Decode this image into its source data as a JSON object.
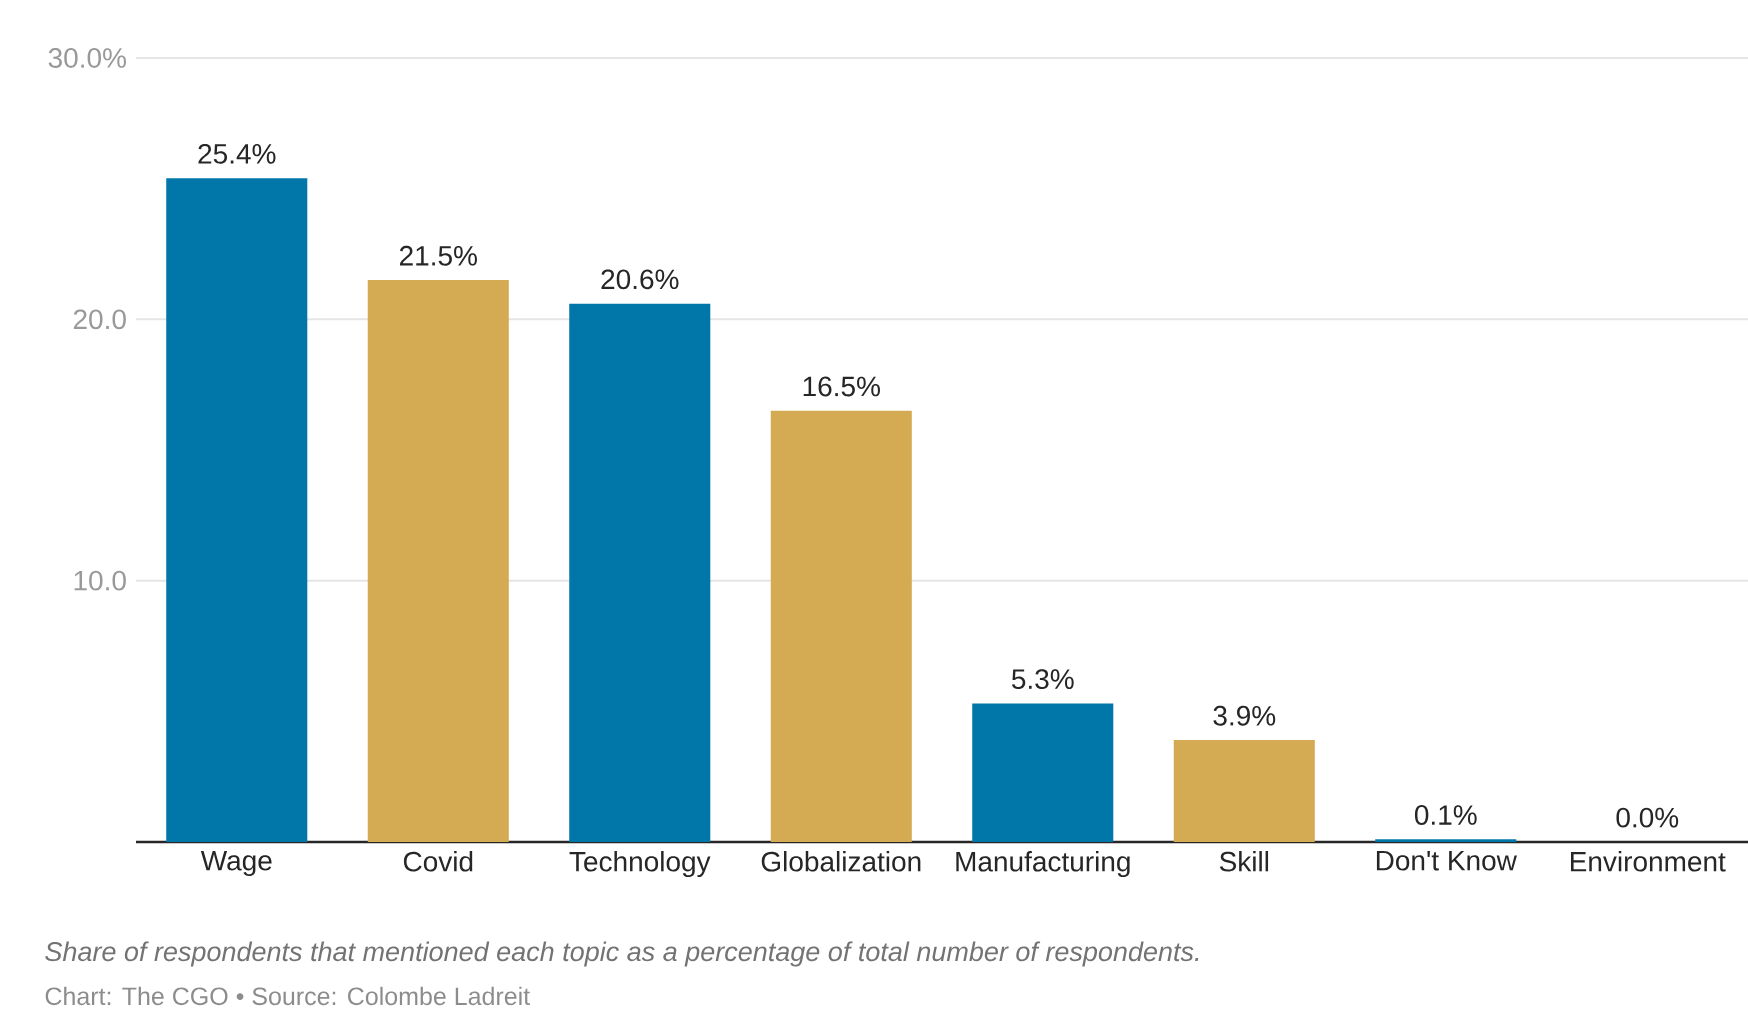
{
  "chart_data": {
    "type": "bar",
    "categories": [
      "Wage",
      "Covid",
      "Technology",
      "Globalization",
      "Manufacturing",
      "Skill",
      "Don't Know",
      "Environment"
    ],
    "values": [
      25.4,
      21.5,
      20.6,
      16.5,
      5.3,
      3.9,
      0.1,
      0.0
    ],
    "colors": [
      "#0077a8",
      "#d4aa52",
      "#0077a8",
      "#d4aa52",
      "#0077a8",
      "#d4aa52",
      "#0077a8",
      "#d4aa52"
    ],
    "value_labels": [
      "25.4%",
      "21.5%",
      "20.6%",
      "16.5%",
      "5.3%",
      "3.9%",
      "0.1%",
      "0.0%"
    ],
    "ylim": [
      0,
      30
    ],
    "yticks": [
      {
        "value": 10,
        "label": "10.0"
      },
      {
        "value": 20,
        "label": "20.0"
      },
      {
        "value": 30,
        "label": "30.0%"
      }
    ],
    "grid": "y",
    "annotations": [
      "Share of respondents that mentioned each topic as a percentage of total number of respondents.",
      "Chart: The CGO • Source: Colombe Ladreit"
    ]
  }
}
